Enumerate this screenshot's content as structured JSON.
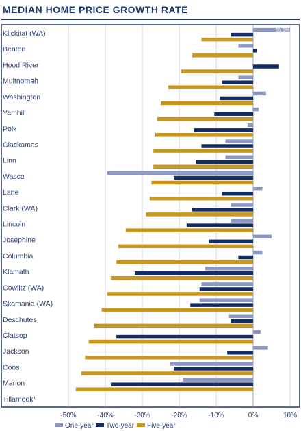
{
  "chart_data": {
    "type": "bar",
    "orientation": "horizontal",
    "title": "MEDIAN HOME PRICE GROWTH RATE",
    "categories": [
      "Klickitat (WA)",
      "Benton",
      "Hood River",
      "Multnomah",
      "Washington",
      "Yamhill",
      "Polk",
      "Clackamas",
      "Linn",
      "Wasco",
      "Lane",
      "Clark (WA)",
      "Lincoln",
      "Josephine",
      "Columbia",
      "Klamath",
      "Cowlitz (WA)",
      "Skamania (WA)",
      "Deschutes",
      "Clatsop",
      "Jackson",
      "Coos",
      "Marion",
      "Tillamook¹"
    ],
    "series": [
      {
        "name": "One-year",
        "color": "#8c98c2",
        "values": [
          12.5,
          -4,
          0,
          -4,
          3.5,
          1.5,
          -1.5,
          -7.5,
          -7.5,
          -39.5,
          2.5,
          -6,
          -6,
          5,
          2.5,
          -13,
          -14,
          -14.5,
          -6.5,
          2,
          4,
          -22.5,
          -19,
          0
        ]
      },
      {
        "name": "Two-year",
        "color": "#132c61",
        "values": [
          -6,
          1,
          7,
          -8.5,
          -9,
          -10.5,
          -16,
          -14,
          -15.5,
          -21.5,
          -8.5,
          -16.5,
          -18,
          -12,
          -4,
          -32,
          -14.5,
          -17,
          -6,
          -37,
          -7,
          -21.5,
          -38.5,
          0
        ]
      },
      {
        "name": "Five-year",
        "color": "#c9961e",
        "values": [
          -14,
          -16.5,
          -19.5,
          -23,
          -25,
          -26,
          -26.5,
          -27,
          -27,
          -27.5,
          -28,
          -29,
          -34.5,
          -36.5,
          -37,
          -38.5,
          -39.5,
          -41,
          -43,
          -44.5,
          -45.5,
          -46.5,
          -48,
          0
        ]
      }
    ],
    "annotations": [
      {
        "category": "Klickitat (WA)",
        "series": "One-year",
        "text": "55.6%"
      }
    ],
    "xlim": [
      -50,
      10
    ],
    "xticks": [
      -50,
      -40,
      -30,
      -20,
      -10,
      0,
      10
    ],
    "xtick_labels": [
      "-50%",
      "-40%",
      "-30%",
      "-20%",
      "-10%",
      "0%",
      "10%"
    ],
    "grid": true,
    "legend": "bottom"
  }
}
